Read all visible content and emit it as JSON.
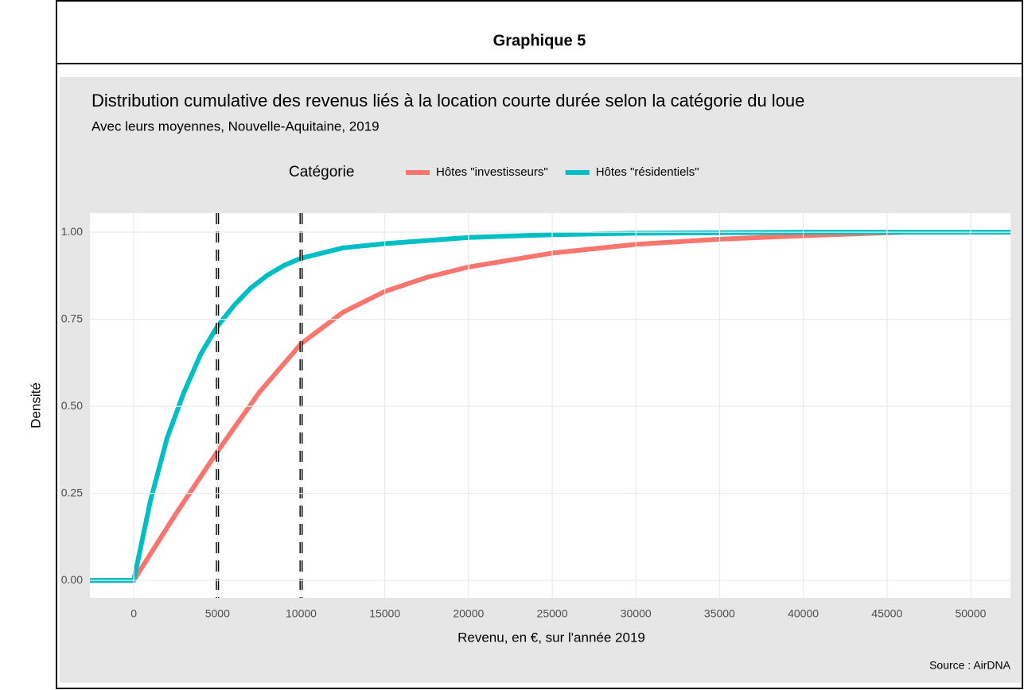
{
  "header": {
    "title": "Graphique 5"
  },
  "chart_data": {
    "type": "line",
    "title": "Distribution cumulative des revenus liés à la location courte durée selon la catégorie du loue",
    "subtitle": "Avec leurs moyennes, Nouvelle-Aquitaine, 2019",
    "x_label": "Revenu, en €, sur l'année 2019",
    "y_label": "Densité",
    "legend_title": "Catégorie",
    "legend": "top",
    "source": "Source : AirDNA",
    "grid": true,
    "xlim": [
      -2620,
      52380
    ],
    "ylim": [
      -0.05,
      1.055
    ],
    "xticks": [
      0,
      5000,
      10000,
      15000,
      20000,
      25000,
      30000,
      35000,
      40000,
      45000,
      50000
    ],
    "yticks": [
      {
        "value": 0,
        "label": "0.00"
      },
      {
        "value": 0.25,
        "label": "0.25"
      },
      {
        "value": 0.5,
        "label": "0.50"
      },
      {
        "value": 0.75,
        "label": "0.75"
      },
      {
        "value": 1,
        "label": "1.00"
      }
    ],
    "vlines": [
      5000,
      10000
    ],
    "series": [
      {
        "name": "Hôtes \"investisseurs\"",
        "color": "#f8766d",
        "x": [
          -2620,
          0,
          2500,
          5000,
          7500,
          10000,
          12500,
          15000,
          17500,
          20000,
          25000,
          30000,
          35000,
          40000,
          46000
        ],
        "values": [
          0,
          0,
          0.19,
          0.37,
          0.54,
          0.68,
          0.77,
          0.83,
          0.87,
          0.9,
          0.94,
          0.965,
          0.98,
          0.99,
          1.0
        ]
      },
      {
        "name": "Hôtes \"résidentiels\"",
        "color": "#00bfc4",
        "x": [
          -2620,
          0,
          1000,
          2000,
          3000,
          4000,
          5000,
          6000,
          7000,
          8000,
          9000,
          10000,
          12500,
          15000,
          20000,
          25000,
          30000,
          40000,
          52380
        ],
        "values": [
          0,
          0,
          0.23,
          0.41,
          0.54,
          0.65,
          0.73,
          0.79,
          0.84,
          0.877,
          0.905,
          0.925,
          0.955,
          0.967,
          0.985,
          0.993,
          0.997,
          1.0,
          1.0
        ]
      }
    ]
  }
}
